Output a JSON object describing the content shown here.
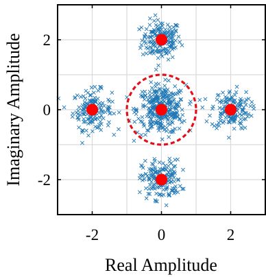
{
  "chart_data": {
    "type": "scatter",
    "title": "",
    "xlabel": "Real Amplitude",
    "ylabel": "Imaginary Amplitude",
    "xlim": [
      -3,
      3
    ],
    "ylim": [
      -3,
      3
    ],
    "xticks": [
      -2,
      0,
      2
    ],
    "yticks": [
      -2,
      0,
      2
    ],
    "xtick_labels": [
      "-2",
      "0",
      "2"
    ],
    "ytick_labels": [
      "-2",
      "0",
      "2"
    ],
    "grid": true,
    "colors": {
      "scatter": "#1f77b4",
      "points": "#ff0000",
      "circle": "#e3101a",
      "grid": "#d9d9d9",
      "axes": "#000000"
    },
    "constellation_points": [
      {
        "x": 0,
        "y": 2
      },
      {
        "x": -2,
        "y": 0
      },
      {
        "x": 0,
        "y": 0
      },
      {
        "x": 2,
        "y": 0
      },
      {
        "x": 0,
        "y": -2
      }
    ],
    "received_clusters": [
      {
        "center": [
          0,
          2
        ],
        "spread": 0.28,
        "count": 170
      },
      {
        "center": [
          -2,
          0
        ],
        "spread": 0.28,
        "count": 150
      },
      {
        "center": [
          0,
          0
        ],
        "spread": 0.35,
        "count": 320
      },
      {
        "center": [
          2,
          0
        ],
        "spread": 0.28,
        "count": 150
      },
      {
        "center": [
          0,
          -2
        ],
        "spread": 0.28,
        "count": 170
      }
    ],
    "decision_circle": {
      "center": [
        0,
        0
      ],
      "radius": 1,
      "style": "dashed"
    }
  }
}
